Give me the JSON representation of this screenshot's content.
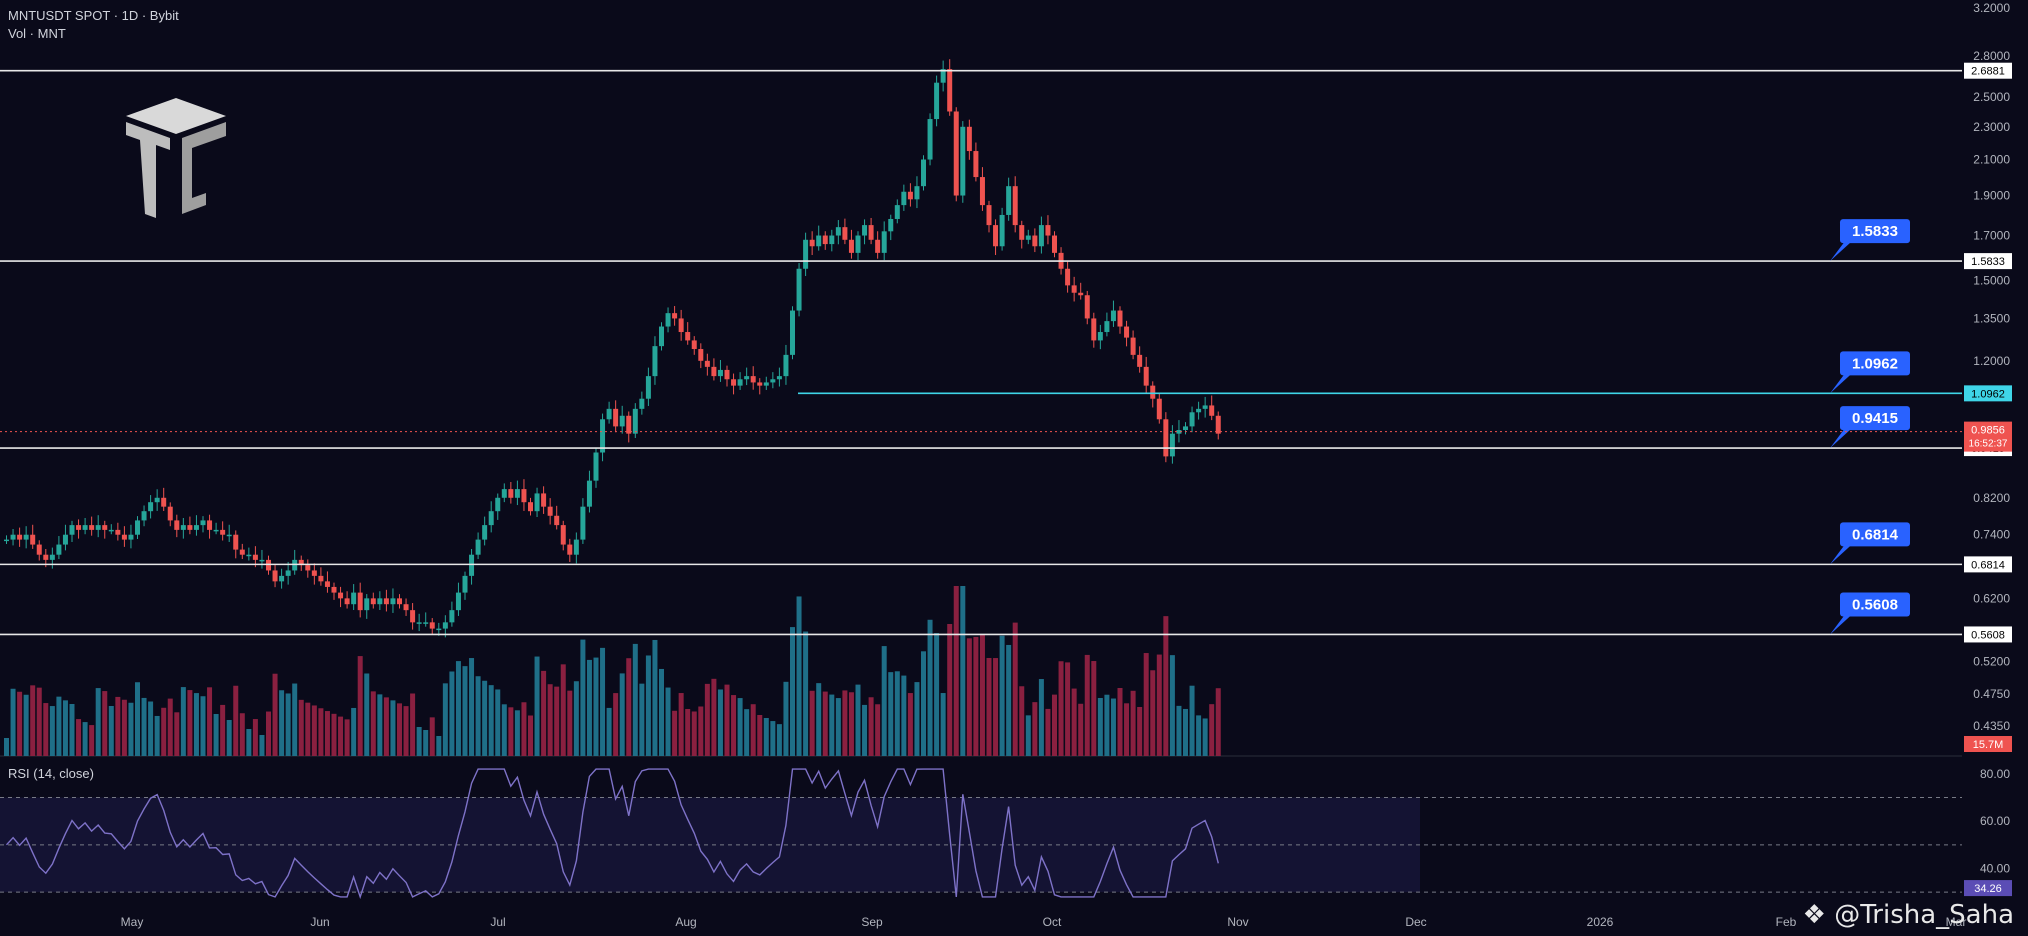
{
  "header": {
    "symbol_line": "MNTUSDT SPOT · 1D · Bybit",
    "volume_line": "Vol · MNT"
  },
  "watermark": "@Trisha_Saha",
  "colors": {
    "bg": "#0a0a1a",
    "up": "#26a69a",
    "down": "#ef5350",
    "vol_up": "#1f6f88",
    "vol_down": "#8a2040",
    "rsi": "#7e72c8",
    "cyan": "#3fd5e8",
    "badge": "#2962ff"
  },
  "chart_data": [
    {
      "type": "candlestick",
      "x_ticks": [
        "May",
        "Jun",
        "Jul",
        "Aug",
        "Sep",
        "Oct",
        "Nov",
        "Dec",
        "2026",
        "Feb",
        "Mar"
      ],
      "price_axis_ticks": [
        "3.2000",
        "2.8000",
        "2.5000",
        "2.3000",
        "2.1000",
        "1.9000",
        "1.7000",
        "1.5000",
        "1.3500",
        "1.2000",
        "0.8200",
        "0.7400",
        "0.6200",
        "0.5200",
        "0.4750",
        "0.4350"
      ],
      "ylim": [
        0.4,
        3.2
      ],
      "scale": "log",
      "levels": [
        {
          "value": 2.6881,
          "label": "2.6881"
        },
        {
          "value": 1.5833,
          "label": "1.5833",
          "badge": "1.5833"
        },
        {
          "value": 1.0962,
          "label": "1.0962",
          "badge": "1.0962"
        },
        {
          "value": 0.9415,
          "label": "0.9415",
          "badge": "0.9415"
        },
        {
          "value": 0.6814,
          "label": "0.6814",
          "badge": "0.6814"
        },
        {
          "value": 0.5608,
          "label": "0.5608",
          "badge": "0.5608"
        }
      ],
      "current_price": {
        "value": 0.9856,
        "label": "0.9856",
        "countdown": "16:52:37"
      },
      "volume_label": "15.7M",
      "closes": [
        0.73,
        0.74,
        0.73,
        0.74,
        0.72,
        0.7,
        0.69,
        0.7,
        0.72,
        0.74,
        0.76,
        0.75,
        0.76,
        0.75,
        0.76,
        0.75,
        0.75,
        0.74,
        0.73,
        0.74,
        0.77,
        0.79,
        0.81,
        0.82,
        0.8,
        0.77,
        0.75,
        0.76,
        0.75,
        0.76,
        0.77,
        0.75,
        0.75,
        0.74,
        0.74,
        0.71,
        0.7,
        0.7,
        0.69,
        0.69,
        0.67,
        0.65,
        0.66,
        0.67,
        0.69,
        0.68,
        0.67,
        0.66,
        0.65,
        0.64,
        0.63,
        0.62,
        0.61,
        0.63,
        0.6,
        0.62,
        0.61,
        0.62,
        0.61,
        0.62,
        0.61,
        0.6,
        0.58,
        0.58,
        0.58,
        0.57,
        0.57,
        0.58,
        0.6,
        0.63,
        0.66,
        0.7,
        0.73,
        0.76,
        0.79,
        0.82,
        0.84,
        0.82,
        0.84,
        0.81,
        0.79,
        0.83,
        0.8,
        0.78,
        0.76,
        0.72,
        0.7,
        0.73,
        0.8,
        0.86,
        0.93,
        1.02,
        1.05,
        1.0,
        1.03,
        0.98,
        1.05,
        1.08,
        1.15,
        1.25,
        1.32,
        1.37,
        1.35,
        1.3,
        1.27,
        1.24,
        1.2,
        1.18,
        1.15,
        1.17,
        1.14,
        1.12,
        1.14,
        1.15,
        1.13,
        1.12,
        1.13,
        1.14,
        1.15,
        1.22,
        1.38,
        1.55,
        1.68,
        1.65,
        1.7,
        1.66,
        1.7,
        1.74,
        1.68,
        1.62,
        1.7,
        1.75,
        1.68,
        1.62,
        1.72,
        1.78,
        1.85,
        1.92,
        1.88,
        1.95,
        2.1,
        2.35,
        2.6,
        2.7,
        2.4,
        1.9,
        2.3,
        2.15,
        2.0,
        1.85,
        1.75,
        1.65,
        1.8,
        1.95,
        1.75,
        1.68,
        1.7,
        1.65,
        1.75,
        1.7,
        1.62,
        1.55,
        1.48,
        1.45,
        1.44,
        1.35,
        1.27,
        1.3,
        1.34,
        1.38,
        1.32,
        1.28,
        1.22,
        1.18,
        1.12,
        1.08,
        1.02,
        0.92,
        0.98,
        0.99,
        1.0,
        1.04,
        1.05,
        1.06,
        1.03,
        0.98
      ],
      "rsi": {
        "label": "RSI (14, close)",
        "levels": [
          70,
          50,
          30
        ],
        "axis_ticks": [
          "80.00",
          "60.00",
          "40.00"
        ],
        "current": "34.26",
        "ylim": [
          25,
          85
        ]
      }
    }
  ]
}
